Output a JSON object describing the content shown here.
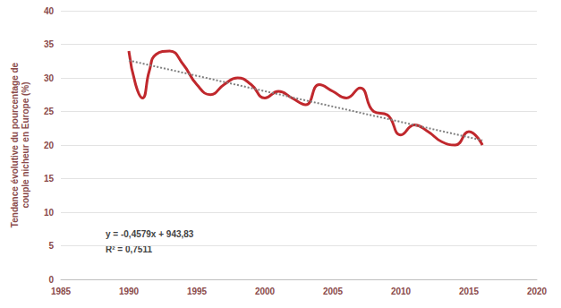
{
  "chart_data": {
    "type": "line",
    "y_label": "Tendance évolutive du pourcentage de\ncouple nicheur en Europe (%)",
    "xlim": [
      1985,
      2020
    ],
    "xticks": [
      1985,
      1990,
      1995,
      2000,
      2005,
      2010,
      2015,
      2020
    ],
    "ylim": [
      0,
      40
    ],
    "yticks": [
      0,
      5,
      10,
      15,
      20,
      25,
      30,
      35,
      40
    ],
    "grid": true,
    "annotations": [
      "y = -0,4579x + 943,83",
      "R² = 0,7511"
    ],
    "series": [
      {
        "type": "line",
        "color": "#c0282d",
        "line_style": "solid",
        "marker": "none",
        "x": [
          1990,
          1990.5,
          1991,
          1991.5,
          1992,
          1993,
          1994,
          1995,
          1996,
          1997,
          1998,
          1999,
          2000,
          2001,
          2002,
          2003,
          2004,
          2005,
          2006,
          2007,
          2008,
          2009,
          2010,
          2011,
          2012,
          2013,
          2014,
          2015,
          2016
        ],
        "values": [
          34,
          29,
          27,
          31,
          33.5,
          34,
          32,
          29,
          27.5,
          29,
          30,
          29,
          27,
          28,
          27,
          26,
          29,
          28,
          27,
          28.5,
          25,
          24.5,
          21.5,
          23,
          22,
          20.5,
          20,
          22,
          20
        ]
      },
      {
        "type": "line",
        "color": "#808080",
        "line_style": "dotted",
        "marker": "none",
        "x": [
          1990,
          2016
        ],
        "values": [
          32.6,
          20.7
        ]
      }
    ]
  }
}
